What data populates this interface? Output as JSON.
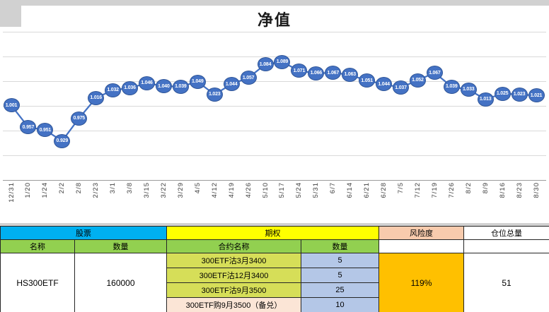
{
  "chart_data": {
    "type": "line",
    "title": "净值",
    "x": [
      "12/31",
      "1/20",
      "1/24",
      "2/2",
      "2/8",
      "2/23",
      "3/1",
      "3/8",
      "3/15",
      "3/22",
      "3/29",
      "4/5",
      "4/12",
      "4/19",
      "4/26",
      "5/10",
      "5/17",
      "5/24",
      "5/31",
      "6/7",
      "6/14",
      "6/21",
      "6/28",
      "7/5",
      "7/12",
      "7/19",
      "7/26",
      "8/2",
      "8/9",
      "8/16",
      "8/23",
      "8/30"
    ],
    "series": [
      {
        "name": "净值",
        "values": [
          1.001,
          0.957,
          0.951,
          0.929,
          0.975,
          1.016,
          1.032,
          1.036,
          1.046,
          1.04,
          1.039,
          1.049,
          1.023,
          1.044,
          1.057,
          1.084,
          1.089,
          1.071,
          1.066,
          1.067,
          1.063,
          1.051,
          1.044,
          1.037,
          1.052,
          1.067,
          1.039,
          1.033,
          1.013,
          1.025,
          1.023,
          1.021
        ]
      }
    ],
    "ylim": [
      0.85,
      1.15
    ],
    "grid": true,
    "legend": "none",
    "data_labels": "values shown in white inside round blue markers, 3 decimals",
    "x_labels_rotated": true
  },
  "colors": {
    "bg-gray": "#D1D1D1",
    "grid": "#D9D9D9",
    "axis": "#9B9B9B",
    "line": "#4472C4",
    "marker": "#4472C4",
    "marker-border": "#2F5597",
    "stock-header": "#00B0F0",
    "option-header": "#FFFF00",
    "risk-header": "#F8CBAD",
    "subheader": "#92D050",
    "contract": "#D6DE58",
    "covered": "#FBE5D6",
    "qty": "#B4C7E7",
    "risk-value": "#FFC000"
  },
  "table": {
    "stock_header": "股票",
    "option_header": "期权",
    "risk_header": "风险度",
    "position_header": "仓位总量",
    "name_label": "名称",
    "qty_label": "数量",
    "contract_label": "合约名称",
    "contract_qty_label": "数量",
    "stock_name": "HS300ETF",
    "stock_qty": "160000",
    "risk_value": "119%",
    "position_value": "51",
    "contracts": [
      {
        "name": "300ETF沽3月3400",
        "qty": "5"
      },
      {
        "name": "300ETF沽12月3400",
        "qty": "5"
      },
      {
        "name": "300ETF沽9月3500",
        "qty": "25"
      },
      {
        "name": "300ETF购9月3500（备兑）",
        "qty": "10"
      }
    ]
  }
}
